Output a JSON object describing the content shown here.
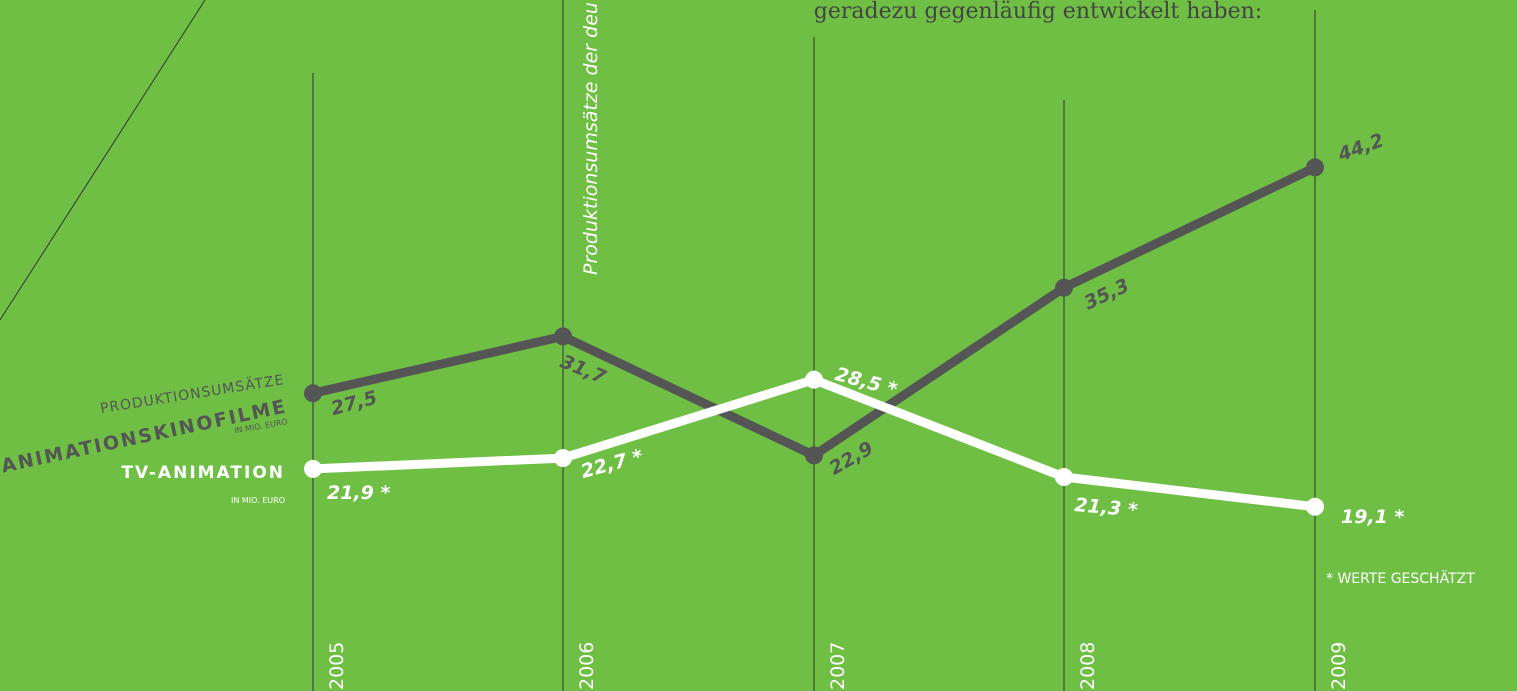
{
  "chart_data": {
    "type": "line",
    "intro_text": "geradezu gegenläufig entwickelt haben:",
    "side_text": "Produktionsumsätze der deu",
    "legend_heading": "PRODUKTIONSUMSÄTZE",
    "unit": "IN MIO. EURO",
    "footnote": "* WERTE GESCHÄTZT",
    "categories": [
      "2005",
      "2006",
      "2007",
      "2008",
      "2009"
    ],
    "ylim": [
      0,
      50
    ],
    "series": [
      {
        "name": "ANIMATIONSKINOFILME",
        "color": "#555555",
        "values": [
          27.5,
          31.7,
          22.9,
          35.3,
          44.2
        ],
        "value_labels": [
          "27,5",
          "31,7",
          "22,9",
          "35,3",
          "44,2"
        ]
      },
      {
        "name": "TV-ANIMATION",
        "color": "#ffffff",
        "values": [
          21.9,
          22.7,
          28.5,
          21.3,
          19.1
        ],
        "value_labels": [
          "21,9 *",
          "22,7 *",
          "28,5 *",
          "21,3 *",
          "19,1 *"
        ]
      }
    ]
  }
}
